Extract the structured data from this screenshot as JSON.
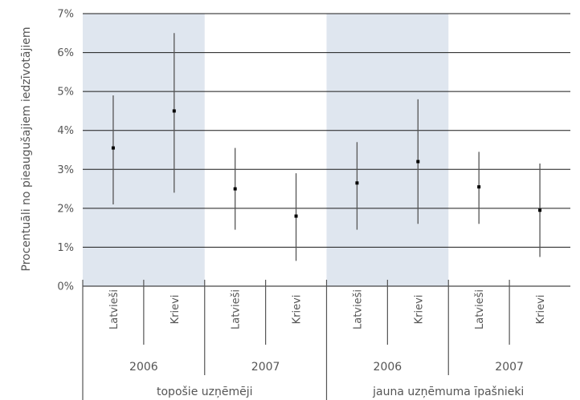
{
  "chart_data": {
    "type": "error-bar",
    "ylabel": "Procentuāli no pieaugušajiem iedzīvotājiem",
    "ylim": [
      0,
      7
    ],
    "yticks": [
      "0%",
      "1%",
      "2%",
      "3%",
      "4%",
      "5%",
      "6%",
      "7%"
    ],
    "grid": true,
    "shaded_color": "#dfe6ef",
    "mark_color": "#000000",
    "groups": [
      {
        "label": "topošie uzņēmēji",
        "years": [
          {
            "year": "2006",
            "shaded": true,
            "items": [
              {
                "category": "Latvieši",
                "value": 3.55,
                "low": 2.1,
                "high": 4.9
              },
              {
                "category": "Krievi",
                "value": 4.5,
                "low": 2.4,
                "high": 6.5
              }
            ]
          },
          {
            "year": "2007",
            "shaded": false,
            "items": [
              {
                "category": "Latvieši",
                "value": 2.5,
                "low": 1.45,
                "high": 3.55
              },
              {
                "category": "Krievi",
                "value": 1.8,
                "low": 0.65,
                "high": 2.9
              }
            ]
          }
        ]
      },
      {
        "label": "jauna uzņēmuma īpašnieki",
        "years": [
          {
            "year": "2006",
            "shaded": true,
            "items": [
              {
                "category": "Latvieši",
                "value": 2.65,
                "low": 1.45,
                "high": 3.7
              },
              {
                "category": "Krievi",
                "value": 3.2,
                "low": 1.6,
                "high": 4.8
              }
            ]
          },
          {
            "year": "2007",
            "shaded": false,
            "items": [
              {
                "category": "Latvieši",
                "value": 2.55,
                "low": 1.6,
                "high": 3.45
              },
              {
                "category": "Krievi",
                "value": 1.95,
                "low": 0.75,
                "high": 3.15
              }
            ]
          }
        ]
      }
    ]
  }
}
